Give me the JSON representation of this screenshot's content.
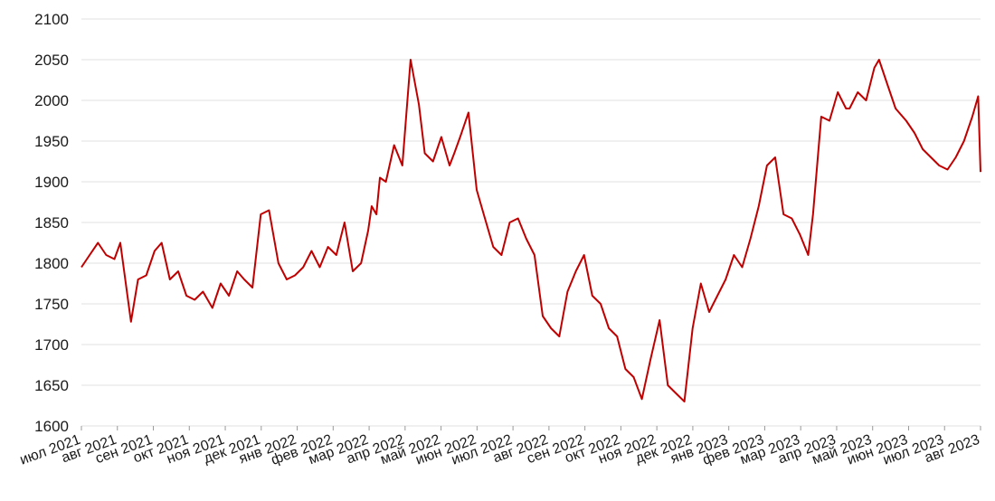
{
  "chart_data": {
    "type": "line",
    "title": "",
    "xlabel": "",
    "ylabel": "",
    "ylim": [
      1600,
      2100
    ],
    "yticks": [
      1600,
      1650,
      1700,
      1750,
      1800,
      1850,
      1900,
      1950,
      2000,
      2050,
      2100
    ],
    "grid": "horizontal",
    "x_tick_labels": [
      "июл 2021",
      "авг 2021",
      "сен 2021",
      "окт 2021",
      "ноя 2021",
      "дек 2021",
      "янв 2022",
      "фев 2022",
      "мар 2022",
      "апр 2022",
      "май 2022",
      "июн 2022",
      "июл 2022",
      "авг 2022",
      "сен 2022",
      "окт 2022",
      "ноя 2022",
      "дек 2022",
      "янв 2023",
      "фев 2023",
      "мар 2023",
      "апр 2023",
      "май 2023",
      "июн 2023",
      "июл 2023",
      "авг 2023"
    ],
    "line_color": "#c00000",
    "series": [
      {
        "x": [
          "2021-07-01",
          "2021-07-08",
          "2021-07-15",
          "2021-07-22",
          "2021-07-29",
          "2021-08-03",
          "2021-08-09",
          "2021-08-12",
          "2021-08-18",
          "2021-08-25",
          "2021-09-01",
          "2021-09-07",
          "2021-09-14",
          "2021-09-21",
          "2021-09-28",
          "2021-10-05",
          "2021-10-12",
          "2021-10-20",
          "2021-10-27",
          "2021-11-03",
          "2021-11-10",
          "2021-11-16",
          "2021-11-23",
          "2021-11-30",
          "2021-12-07",
          "2021-12-15",
          "2021-12-22",
          "2021-12-29",
          "2022-01-05",
          "2022-01-12",
          "2022-01-19",
          "2022-01-26",
          "2022-02-02",
          "2022-02-09",
          "2022-02-16",
          "2022-02-23",
          "2022-03-01",
          "2022-03-04",
          "2022-03-08",
          "2022-03-11",
          "2022-03-16",
          "2022-03-23",
          "2022-03-30",
          "2022-04-06",
          "2022-04-13",
          "2022-04-18",
          "2022-04-25",
          "2022-05-02",
          "2022-05-09",
          "2022-05-13",
          "2022-05-18",
          "2022-05-25",
          "2022-06-01",
          "2022-06-08",
          "2022-06-15",
          "2022-06-22",
          "2022-06-29",
          "2022-07-06",
          "2022-07-13",
          "2022-07-20",
          "2022-07-27",
          "2022-08-03",
          "2022-08-10",
          "2022-08-17",
          "2022-08-24",
          "2022-08-31",
          "2022-09-07",
          "2022-09-14",
          "2022-09-21",
          "2022-09-28",
          "2022-10-05",
          "2022-10-12",
          "2022-10-19",
          "2022-10-26",
          "2022-11-03",
          "2022-11-10",
          "2022-11-17",
          "2022-11-24",
          "2022-12-01",
          "2022-12-08",
          "2022-12-15",
          "2022-12-22",
          "2022-12-29",
          "2023-01-05",
          "2023-01-12",
          "2023-01-19",
          "2023-01-26",
          "2023-02-02",
          "2023-02-09",
          "2023-02-16",
          "2023-02-23",
          "2023-03-02",
          "2023-03-09",
          "2023-03-13",
          "2023-03-20",
          "2023-03-27",
          "2023-04-03",
          "2023-04-10",
          "2023-04-13",
          "2023-04-20",
          "2023-04-27",
          "2023-05-04",
          "2023-05-08",
          "2023-05-15",
          "2023-05-22",
          "2023-05-31",
          "2023-06-07",
          "2023-06-14",
          "2023-06-21",
          "2023-06-28",
          "2023-07-05",
          "2023-07-12",
          "2023-07-19",
          "2023-07-26",
          "2023-07-31",
          "2023-08-02"
        ],
        "y": [
          1795,
          1810,
          1825,
          1810,
          1805,
          1825,
          1760,
          1728,
          1780,
          1785,
          1815,
          1825,
          1780,
          1790,
          1760,
          1755,
          1765,
          1745,
          1775,
          1760,
          1790,
          1780,
          1770,
          1860,
          1865,
          1800,
          1780,
          1785,
          1795,
          1815,
          1795,
          1820,
          1810,
          1850,
          1790,
          1800,
          1840,
          1870,
          1860,
          1905,
          1900,
          1945,
          1920,
          2050,
          1995,
          1935,
          1925,
          1955,
          1920,
          1935,
          1955,
          1985,
          1890,
          1855,
          1820,
          1810,
          1850,
          1855,
          1830,
          1810,
          1735,
          1720,
          1710,
          1765,
          1790,
          1810,
          1760,
          1750,
          1720,
          1710,
          1670,
          1660,
          1633,
          1680,
          1730,
          1650,
          1640,
          1630,
          1720,
          1775,
          1740,
          1760,
          1780,
          1810,
          1795,
          1830,
          1870,
          1920,
          1930,
          1860,
          1855,
          1835,
          1810,
          1860,
          1980,
          1975,
          2010,
          1990,
          1990,
          2010,
          2000,
          2040,
          2050,
          2020,
          1990,
          1975,
          1960,
          1940,
          1930,
          1920,
          1915,
          1930,
          1950,
          1980,
          2005,
          1912
        ]
      }
    ]
  }
}
